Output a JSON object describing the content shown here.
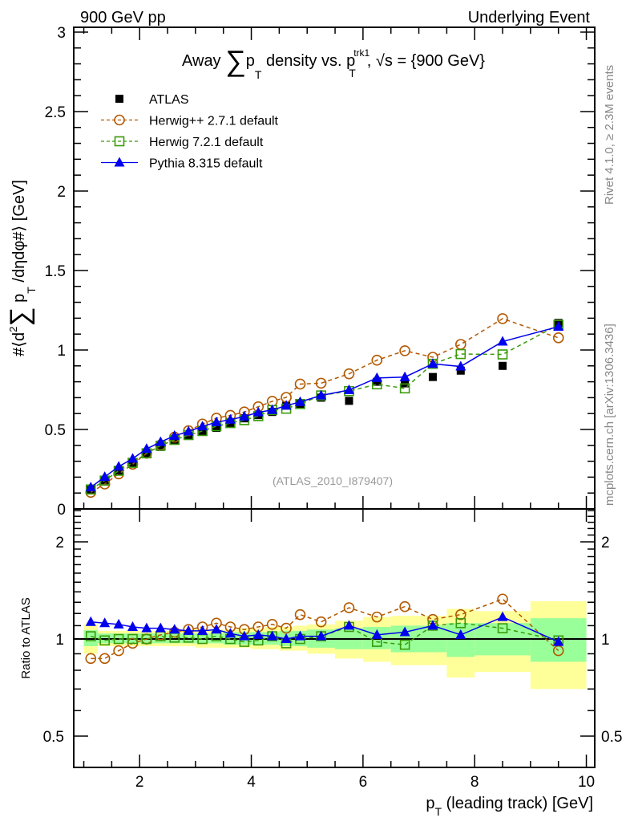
{
  "header": {
    "left": "900 GeV pp",
    "right": "Underlying Event"
  },
  "side_text": {
    "top": "Rivet 4.1.0, ≥ 2.3M events",
    "bottom": "mcplots.cern.ch [arXiv:1306.3436]"
  },
  "watermark": "(ATLAS_2010_I879407)",
  "chart_data": {
    "type": "line",
    "title": {
      "pre": "Away ",
      "sum": "∑",
      "p": "p",
      "sub": "T",
      "mid": " density vs. ",
      "p2": "p",
      "sub2": "T",
      "sup2": "trk1",
      "post": ", √s = {900 GeV}"
    },
    "xlabel": {
      "p": "p",
      "sub": "T",
      "rest": " (leading track) [GeV]"
    },
    "ylabel": {
      "pre": "#⟨d",
      "sup": "2",
      "sum": "∑",
      "p": " p",
      "sub": "T",
      "post": " /dηdφ#⟩ [GeV]"
    },
    "ratio_ylabel": "Ratio to ATLAS",
    "xlim": [
      0.82,
      10.15
    ],
    "ylim": [
      0,
      3.03
    ],
    "ratio_ylim": [
      0.4,
      2.53
    ],
    "ratio_scale": "log",
    "x_ticks": [
      "2",
      "4",
      "6",
      "8",
      "10"
    ],
    "y_ticks": [
      "0",
      "0.5",
      "1",
      "1.5",
      "2",
      "2.5",
      "3"
    ],
    "ratio_ticks": [
      "0.5",
      "1",
      "2"
    ],
    "legend_position": "top-left",
    "x": [
      1.125,
      1.375,
      1.625,
      1.875,
      2.125,
      2.375,
      2.625,
      2.875,
      3.125,
      3.375,
      3.625,
      3.875,
      4.125,
      4.375,
      4.625,
      4.875,
      5.25,
      5.75,
      6.25,
      6.75,
      7.25,
      7.75,
      8.5,
      9.5
    ],
    "bin_edges": [
      1.0,
      1.25,
      1.5,
      1.75,
      2.0,
      2.25,
      2.5,
      2.75,
      3.0,
      3.25,
      3.5,
      3.75,
      4.0,
      4.25,
      4.5,
      4.75,
      5.0,
      5.5,
      6.0,
      6.5,
      7.0,
      7.5,
      8.0,
      9.0,
      10.0
    ],
    "series": [
      {
        "name": "ATLAS",
        "color": "#000000",
        "marker": "square-filled",
        "line": "none",
        "values": [
          0.12,
          0.18,
          0.24,
          0.29,
          0.35,
          0.39,
          0.43,
          0.46,
          0.49,
          0.51,
          0.54,
          0.57,
          0.59,
          0.61,
          0.65,
          0.66,
          0.7,
          0.68,
          0.8,
          0.79,
          0.83,
          0.87,
          0.9,
          1.17
        ]
      },
      {
        "name": "Herwig++ 2.7.1 default",
        "color": "#b35900",
        "marker": "circle-open",
        "line": "dashed",
        "ratio": [
          0.87,
          0.87,
          0.92,
          0.97,
          1.0,
          1.03,
          1.05,
          1.07,
          1.09,
          1.12,
          1.09,
          1.07,
          1.09,
          1.11,
          1.08,
          1.19,
          1.13,
          1.25,
          1.17,
          1.26,
          1.15,
          1.19,
          1.33,
          0.92
        ]
      },
      {
        "name": "Herwig 7.2.1 default",
        "color": "#3a9a0a",
        "marker": "square-open",
        "line": "dashed",
        "ratio": [
          1.02,
          0.99,
          1.0,
          1.0,
          1.0,
          1.02,
          1.01,
          1.01,
          1.0,
          1.02,
          1.0,
          0.98,
          0.99,
          1.02,
          0.97,
          1.0,
          1.02,
          1.09,
          0.98,
          0.96,
          1.1,
          1.12,
          1.08,
          0.99
        ]
      },
      {
        "name": "Pythia 8.315 default",
        "color": "#0000ee",
        "marker": "triangle-filled",
        "line": "solid",
        "ratio": [
          1.13,
          1.12,
          1.11,
          1.09,
          1.08,
          1.08,
          1.07,
          1.06,
          1.06,
          1.07,
          1.04,
          1.02,
          1.03,
          1.02,
          1.0,
          1.02,
          1.02,
          1.1,
          1.03,
          1.05,
          1.1,
          1.03,
          1.17,
          0.98
        ]
      }
    ],
    "uncertainty_bands": {
      "total_color": "#ffff99",
      "stat_color": "#99ff99",
      "total_lo": [
        0.9,
        0.95,
        0.95,
        0.95,
        0.95,
        0.95,
        0.95,
        0.95,
        0.94,
        0.94,
        0.94,
        0.94,
        0.93,
        0.93,
        0.92,
        0.92,
        0.9,
        0.87,
        0.85,
        0.83,
        0.83,
        0.76,
        0.79,
        0.7
      ],
      "total_hi": [
        1.11,
        1.06,
        1.06,
        1.06,
        1.06,
        1.06,
        1.06,
        1.07,
        1.07,
        1.07,
        1.07,
        1.08,
        1.08,
        1.09,
        1.09,
        1.1,
        1.11,
        1.14,
        1.17,
        1.18,
        1.18,
        1.24,
        1.22,
        1.31
      ],
      "stat_lo": [
        0.95,
        0.97,
        0.97,
        0.97,
        0.97,
        0.97,
        0.97,
        0.97,
        0.97,
        0.97,
        0.96,
        0.96,
        0.96,
        0.96,
        0.95,
        0.95,
        0.94,
        0.93,
        0.93,
        0.91,
        0.91,
        0.88,
        0.89,
        0.85
      ],
      "stat_hi": [
        1.065,
        1.04,
        1.04,
        1.04,
        1.04,
        1.04,
        1.04,
        1.04,
        1.04,
        1.04,
        1.05,
        1.05,
        1.05,
        1.05,
        1.06,
        1.06,
        1.07,
        1.08,
        1.09,
        1.1,
        1.1,
        1.12,
        1.12,
        1.16
      ]
    }
  }
}
